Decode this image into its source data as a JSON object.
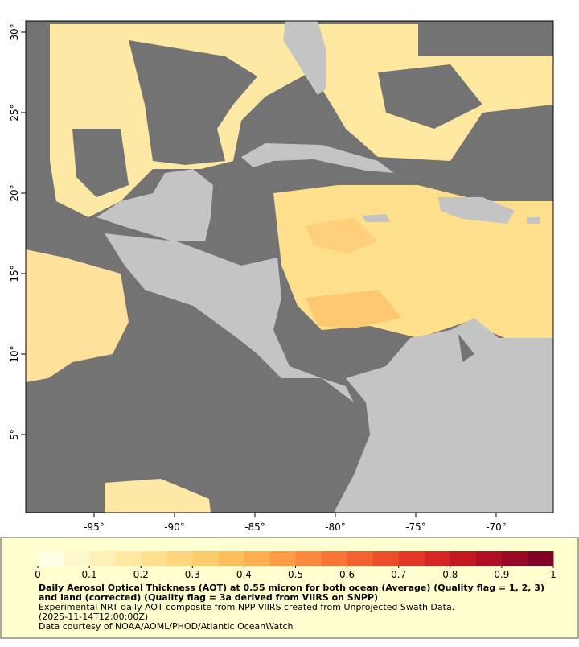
{
  "map": {
    "lon_range": [
      -99.25,
      -66.45
    ],
    "lat_range": [
      0.15,
      30.7
    ],
    "lon_ticks": [
      {
        "value": -95,
        "label": "-95°"
      },
      {
        "value": -90,
        "label": "-90°"
      },
      {
        "value": -85,
        "label": "-85°"
      },
      {
        "value": -80,
        "label": "-80°"
      },
      {
        "value": -75,
        "label": "-75°"
      },
      {
        "value": -70,
        "label": "-70°"
      }
    ],
    "lat_ticks": [
      {
        "value": 30,
        "label": "30°"
      },
      {
        "value": 25,
        "label": "25°"
      },
      {
        "value": 20,
        "label": "20°"
      },
      {
        "value": 15,
        "label": "15°"
      },
      {
        "value": 10,
        "label": "10°"
      },
      {
        "value": 5,
        "label": "5°"
      }
    ]
  },
  "colorbar": {
    "range": [
      0,
      1
    ],
    "ticks": [
      0,
      0.1,
      0.2,
      0.3,
      0.4,
      0.5,
      0.6,
      0.7,
      0.8,
      0.9,
      1
    ],
    "colors": [
      "#ffffe6",
      "#fff8cf",
      "#fff1b8",
      "#ffe9a3",
      "#ffe08f",
      "#fed67d",
      "#fecb6c",
      "#febe5c",
      "#fdae4f",
      "#fd9c44",
      "#fc893c",
      "#fa7535",
      "#f5602f",
      "#ee4b2a",
      "#e43626",
      "#d72523",
      "#c51721",
      "#b10d24",
      "#990826",
      "#800026"
    ]
  },
  "caption": {
    "title": "Daily Aerosol Optical Thickness (AOT) at 0.55 micron for both ocean (Average) (Quality flag = 1, 2, 3) and land (corrected) (Quality flag = 3a derived from VIIRS on SNPP)",
    "lines": [
      "Experimental NRT daily AOT composite from NPP VIIRS created from Unprojected Swath Data.",
      "(2025-11-14T12:00:00Z)",
      "Data courtesy of NOAA/AOML/PHOD/Atlantic OceanWatch"
    ]
  }
}
